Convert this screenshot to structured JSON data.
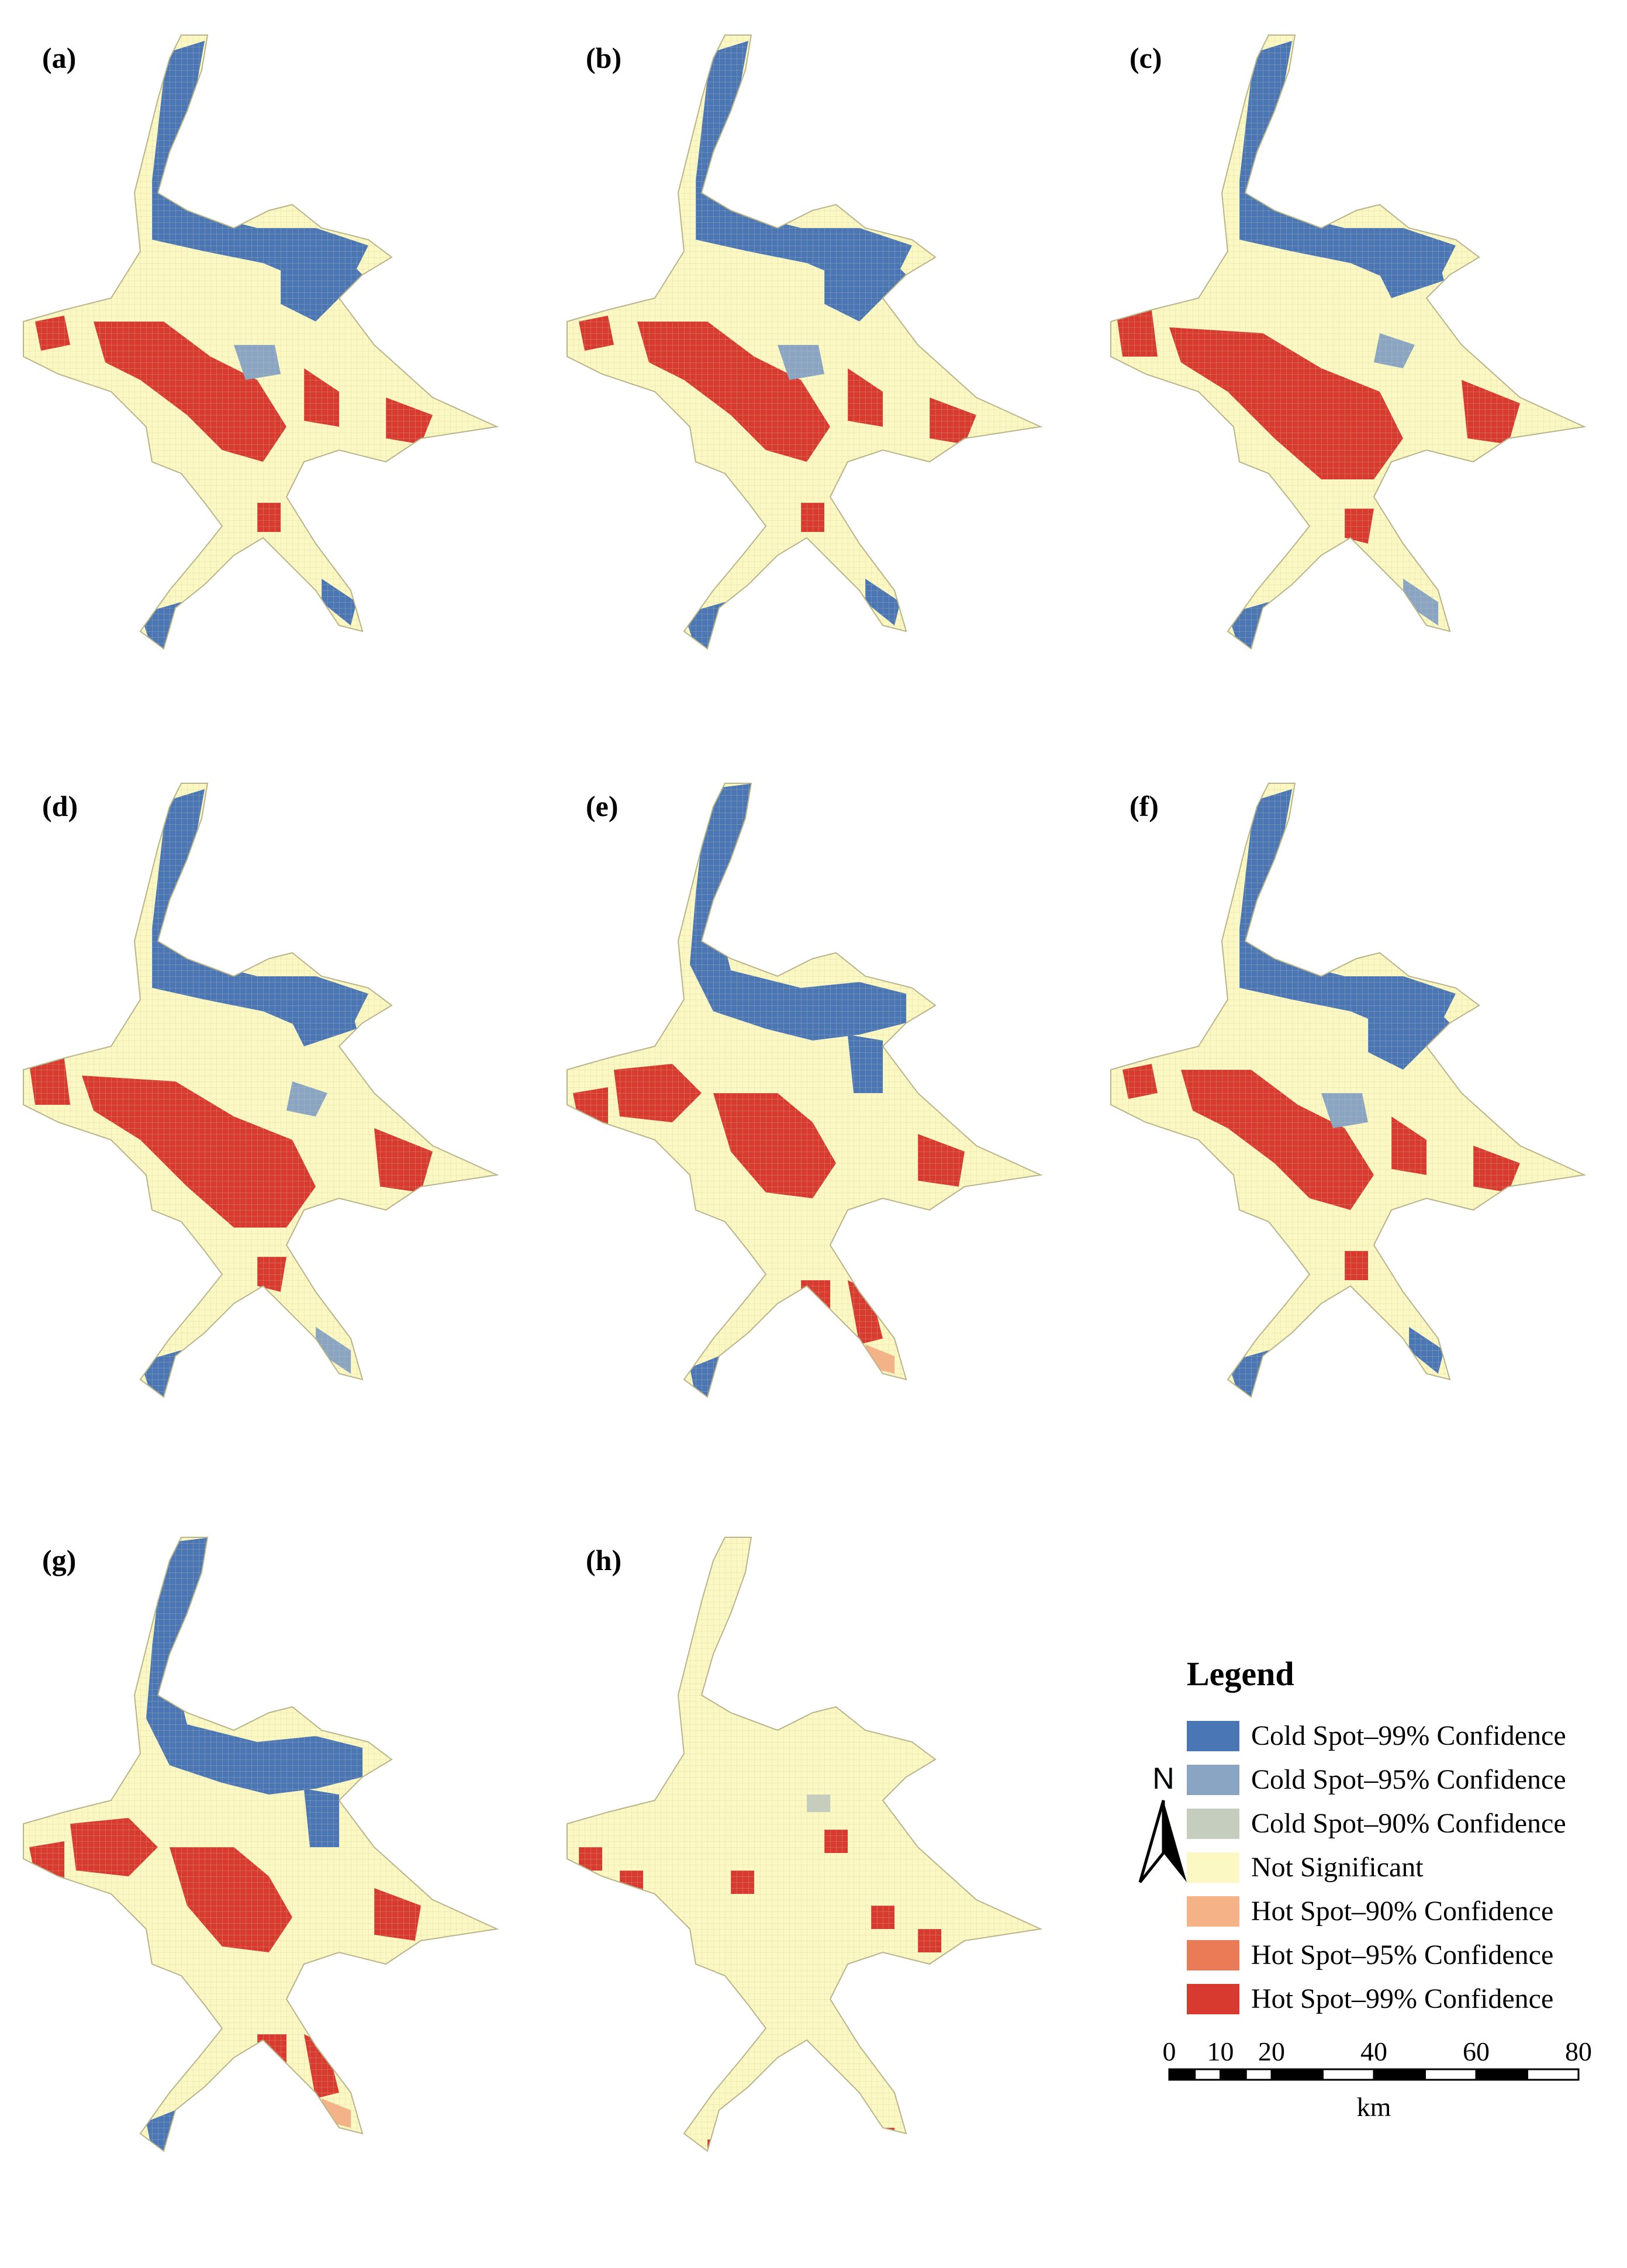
{
  "figure": {
    "panels": [
      {
        "label": "(a)",
        "pattern": "mixed"
      },
      {
        "label": "(b)",
        "pattern": "mixed"
      },
      {
        "label": "(c)",
        "pattern": "hot-center"
      },
      {
        "label": "(d)",
        "pattern": "hot-center"
      },
      {
        "label": "(e)",
        "pattern": "cold-north"
      },
      {
        "label": "(f)",
        "pattern": "mixed"
      },
      {
        "label": "(g)",
        "pattern": "cold-north"
      },
      {
        "label": "(h)",
        "pattern": "not-significant"
      }
    ]
  },
  "legend": {
    "title": "Legend",
    "items": [
      {
        "label": "Cold Spot–99% Confidence",
        "color": "#4a76b6"
      },
      {
        "label": "Cold Spot–95% Confidence",
        "color": "#8aa5c4"
      },
      {
        "label": "Cold Spot–90% Confidence",
        "color": "#c5cdbe"
      },
      {
        "label": "Not Significant",
        "color": "#fbf8c4"
      },
      {
        "label": "Hot Spot–90% Confidence",
        "color": "#f5b287"
      },
      {
        "label": "Hot Spot–95% Confidence",
        "color": "#eb7a57"
      },
      {
        "label": "Hot Spot–99% Confidence",
        "color": "#d93a2f"
      }
    ]
  },
  "north_arrow": {
    "label": "N"
  },
  "scale_bar": {
    "ticks": [
      "0",
      "10",
      "20",
      "40",
      "60",
      "80"
    ],
    "tick_values": [
      0,
      10,
      20,
      40,
      60,
      80
    ],
    "unit": "km"
  }
}
